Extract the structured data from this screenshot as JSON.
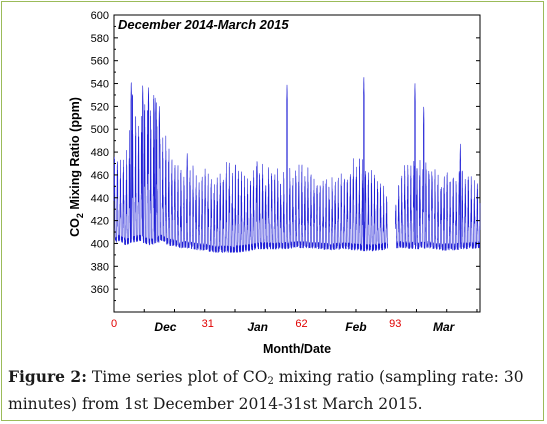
{
  "chart_data": {
    "type": "line",
    "title": "December 2014-March 2015",
    "xlabel": "Month/Date",
    "ylabel_main": "CO",
    "ylabel_sub": "2",
    "ylabel_rest": " Mixing Ratio (ppm)",
    "xlim": [
      0,
      121
    ],
    "ylim": [
      340,
      600
    ],
    "y_ticks": [
      360,
      380,
      400,
      420,
      440,
      460,
      480,
      500,
      520,
      540,
      560,
      580,
      600
    ],
    "x_numeric_ticks": [
      {
        "label": "0",
        "x": 0
      },
      {
        "label": "31",
        "x": 31
      },
      {
        "label": "62",
        "x": 62
      },
      {
        "label": "93",
        "x": 93
      }
    ],
    "x_month_labels": [
      {
        "label": "Dec",
        "x": 17
      },
      {
        "label": "Jan",
        "x": 47.5
      },
      {
        "label": "Feb",
        "x": 80
      },
      {
        "label": "Mar",
        "x": 109
      }
    ],
    "gap": [
      90.5,
      93
    ],
    "sampling_interval_minutes": 30,
    "series": [
      {
        "color": "#1f1fd6",
        "envelope": [
          {
            "day": 0,
            "base": 400,
            "peak": 482
          },
          {
            "day": 2,
            "base": 402,
            "peak": 470
          },
          {
            "day": 4,
            "base": 398,
            "peak": 478
          },
          {
            "day": 6,
            "base": 400,
            "peak": 532
          },
          {
            "day": 8,
            "base": 402,
            "peak": 520
          },
          {
            "day": 10,
            "base": 400,
            "peak": 538
          },
          {
            "day": 12,
            "base": 398,
            "peak": 528
          },
          {
            "day": 14,
            "base": 400,
            "peak": 540
          },
          {
            "day": 16,
            "base": 402,
            "peak": 500
          },
          {
            "day": 18,
            "base": 398,
            "peak": 488
          },
          {
            "day": 20,
            "base": 398,
            "peak": 475
          },
          {
            "day": 22,
            "base": 396,
            "peak": 465
          },
          {
            "day": 24,
            "base": 396,
            "peak": 455
          },
          {
            "day": 26,
            "base": 395,
            "peak": 468
          },
          {
            "day": 28,
            "base": 394,
            "peak": 450
          },
          {
            "day": 30,
            "base": 394,
            "peak": 462
          },
          {
            "day": 33,
            "base": 392,
            "peak": 455
          },
          {
            "day": 36,
            "base": 392,
            "peak": 465
          },
          {
            "day": 40,
            "base": 392,
            "peak": 470
          },
          {
            "day": 44,
            "base": 393,
            "peak": 455
          },
          {
            "day": 48,
            "base": 395,
            "peak": 470
          },
          {
            "day": 52,
            "base": 395,
            "peak": 470
          },
          {
            "day": 56,
            "base": 395,
            "peak": 460
          },
          {
            "day": 60,
            "base": 396,
            "peak": 470
          },
          {
            "day": 64,
            "base": 396,
            "peak": 462
          },
          {
            "day": 68,
            "base": 395,
            "peak": 458
          },
          {
            "day": 72,
            "base": 394,
            "peak": 456
          },
          {
            "day": 76,
            "base": 395,
            "peak": 460
          },
          {
            "day": 80,
            "base": 394,
            "peak": 475
          },
          {
            "day": 84,
            "base": 393,
            "peak": 465
          },
          {
            "day": 88,
            "base": 394,
            "peak": 455
          },
          {
            "day": 90.5,
            "base": 395,
            "peak": 440
          },
          {
            "day": 93,
            "base": 396,
            "peak": 445
          },
          {
            "day": 96,
            "base": 396,
            "peak": 468
          },
          {
            "day": 100,
            "base": 395,
            "peak": 480
          },
          {
            "day": 104,
            "base": 396,
            "peak": 470
          },
          {
            "day": 108,
            "base": 394,
            "peak": 465
          },
          {
            "day": 112,
            "base": 394,
            "peak": 462
          },
          {
            "day": 116,
            "base": 395,
            "peak": 465
          },
          {
            "day": 121,
            "base": 396,
            "peak": 450
          }
        ],
        "spikes": [
          {
            "day": 5.7,
            "value": 542
          },
          {
            "day": 9.5,
            "value": 538
          },
          {
            "day": 11.4,
            "value": 537
          },
          {
            "day": 13.6,
            "value": 528
          },
          {
            "day": 15,
            "value": 520
          },
          {
            "day": 24.2,
            "value": 480
          },
          {
            "day": 47.3,
            "value": 473
          },
          {
            "day": 57.2,
            "value": 540
          },
          {
            "day": 82.6,
            "value": 546
          },
          {
            "day": 99.5,
            "value": 540
          },
          {
            "day": 102.4,
            "value": 520
          },
          {
            "day": 114.5,
            "value": 487
          }
        ]
      }
    ]
  },
  "caption": {
    "label": "Figure 2:",
    "text_a": " Time series plot of CO",
    "text_sub": "2",
    "text_b": " mixing ratio (sampling rate: 30 minutes) from 1st December 2014-31st March 2015."
  }
}
